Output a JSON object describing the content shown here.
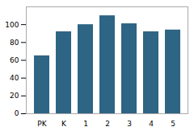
{
  "chart_data": {
    "type": "bar",
    "categories": [
      "PK",
      "K",
      "1",
      "2",
      "3",
      "4",
      "5"
    ],
    "values": [
      65,
      92,
      100,
      110,
      101,
      92,
      94
    ],
    "color": "#2e6484",
    "ylim": [
      0,
      120
    ],
    "yticks": [
      0,
      20,
      40,
      60,
      80,
      100
    ],
    "grid": false
  }
}
